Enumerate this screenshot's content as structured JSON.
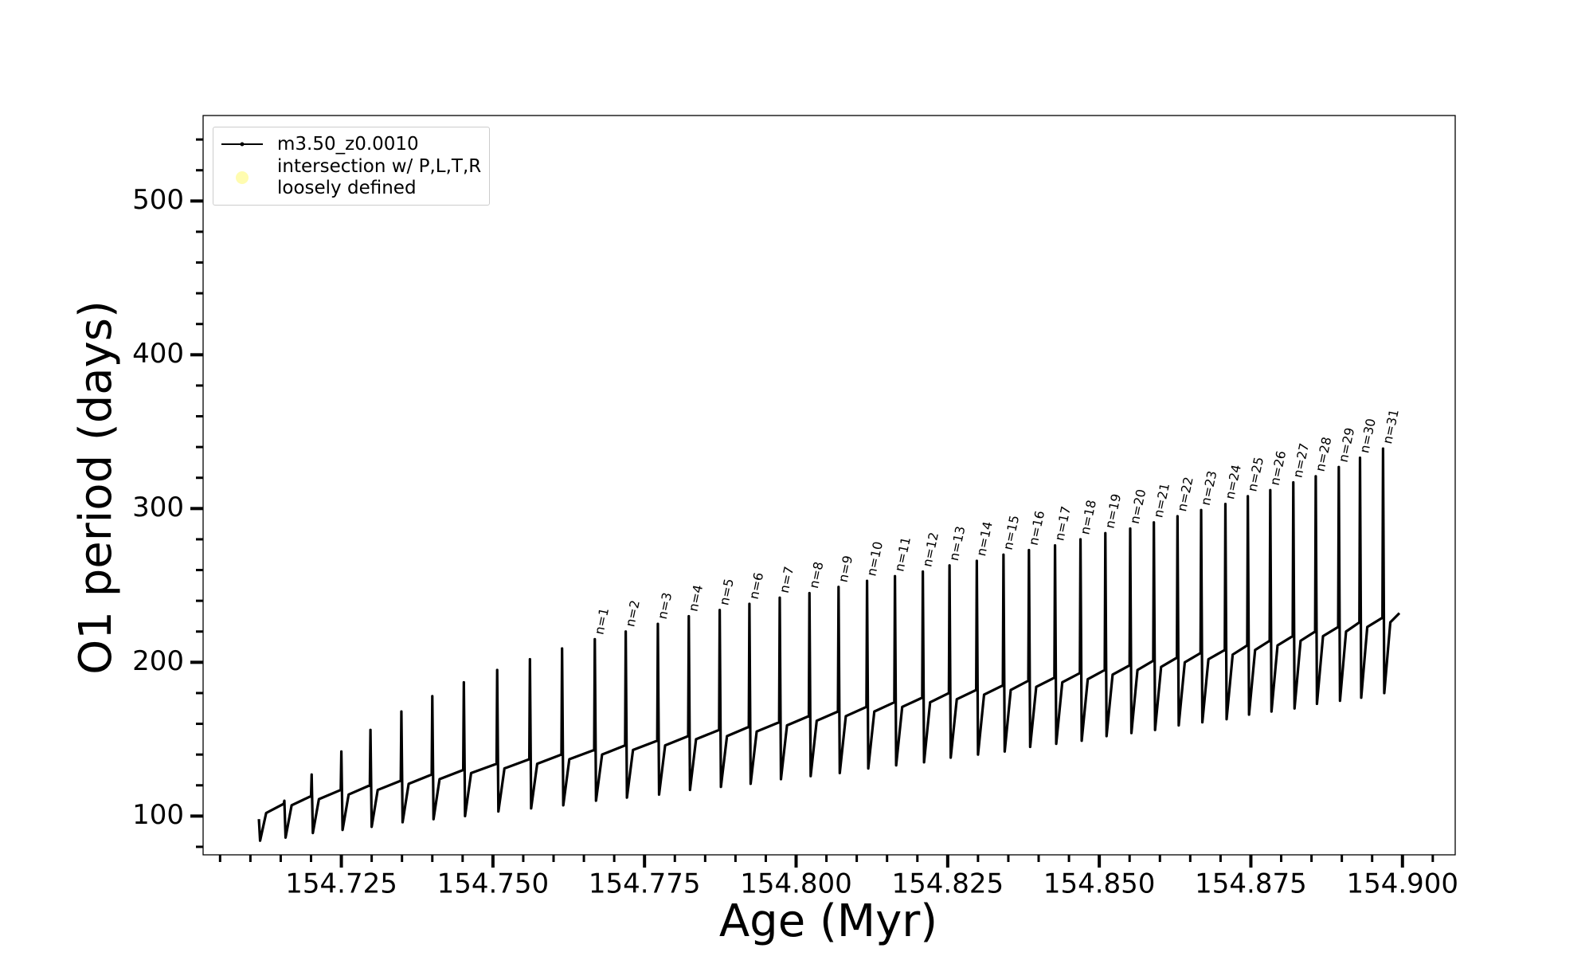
{
  "chart_data": {
    "type": "line",
    "xlabel": "Age (Myr)",
    "ylabel": "O1 period (days)",
    "xlim": [
      154.7022,
      154.9087
    ],
    "ylim": [
      74.8,
      555.6
    ],
    "xticks": [
      154.725,
      {
        "value": 154.75,
        "label": "154.750"
      },
      154.775,
      {
        "value": 154.8,
        "label": "154.800"
      },
      154.825,
      {
        "value": 154.85,
        "label": "154.850"
      },
      154.875,
      {
        "value": 154.9,
        "label": "154.900"
      }
    ],
    "xminorticks": [
      154.705,
      154.71,
      154.715,
      154.72,
      154.73,
      154.735,
      154.74,
      154.745,
      154.755,
      154.76,
      154.765,
      154.77,
      154.78,
      154.785,
      154.79,
      154.795,
      154.805,
      154.81,
      154.815,
      154.82,
      154.83,
      154.835,
      154.84,
      154.845,
      154.855,
      154.86,
      154.865,
      154.87,
      154.88,
      154.885,
      154.89,
      154.895,
      154.905
    ],
    "yticks": [
      100,
      200,
      300,
      400,
      500
    ],
    "yminorticks": [
      80,
      120,
      140,
      160,
      180,
      220,
      240,
      260,
      280,
      320,
      340,
      360,
      380,
      420,
      440,
      460,
      480,
      520,
      540
    ],
    "grid": false,
    "legend": "upper left",
    "series": [
      {
        "name": "m3.50_z0.0010",
        "kind": "line",
        "color": "#000000",
        "x": [
          154.7114,
          154.7116,
          154.7126,
          154.7155,
          154.7156,
          154.7158,
          154.7168,
          154.72,
          154.7201,
          154.7203,
          154.7213,
          154.7249,
          154.725,
          154.7252,
          154.7262,
          154.7297,
          154.7298,
          154.73,
          154.731,
          154.7348,
          154.7349,
          154.7351,
          154.7361,
          154.7399,
          154.74,
          154.7402,
          154.7412,
          154.7451,
          154.7452,
          154.7454,
          154.7464,
          154.7506,
          154.7507,
          154.7509,
          154.7519,
          154.756,
          154.7561,
          154.7563,
          154.7573,
          154.7613,
          154.7614,
          154.7616,
          154.7626,
          154.7667,
          154.7668,
          154.767,
          154.768,
          154.7718,
          154.7719,
          154.7721,
          154.7731,
          154.7771,
          154.7772,
          154.7774,
          154.7784,
          154.7822,
          154.7823,
          154.7825,
          154.7835,
          154.7873,
          154.7874,
          154.7876,
          154.7886,
          154.7922,
          154.7923,
          154.7925,
          154.7935,
          154.7972,
          154.7973,
          154.7975,
          154.7985,
          154.8021,
          154.8022,
          154.8024,
          154.8034,
          154.8069,
          154.807,
          154.8072,
          154.8082,
          154.8116,
          154.8117,
          154.8119,
          154.8129,
          154.8162,
          154.8163,
          154.8165,
          154.8175,
          154.8208,
          154.8209,
          154.8211,
          154.8221,
          154.8252,
          154.8253,
          154.8255,
          154.8265,
          154.8297,
          154.8298,
          154.83,
          154.831,
          154.8341,
          154.8342,
          154.8344,
          154.8354,
          154.8383,
          154.8384,
          154.8386,
          154.8396,
          154.8426,
          154.8427,
          154.8429,
          154.8439,
          154.8468,
          154.8469,
          154.8471,
          154.8481,
          154.8509,
          154.851,
          154.8512,
          154.8522,
          154.855,
          154.8551,
          154.8553,
          154.8563,
          154.8589,
          154.859,
          154.8592,
          154.8602,
          154.8628,
          154.8629,
          154.8631,
          154.8641,
          154.8667,
          154.8668,
          154.867,
          154.868,
          154.8707,
          154.8708,
          154.871,
          154.872,
          154.8744,
          154.8745,
          154.8747,
          154.8757,
          154.8781,
          154.8782,
          154.8784,
          154.8794,
          154.8819,
          154.882,
          154.8822,
          154.8832,
          154.8856,
          154.8857,
          154.8859,
          154.8869,
          154.8894,
          154.8895,
          154.8897,
          154.8907,
          154.8929,
          154.893,
          154.8932,
          154.8942,
          154.8967,
          154.8968,
          154.897,
          154.898,
          154.8995
        ],
        "values": [
          98,
          84,
          102,
          108,
          110,
          86,
          107,
          113,
          127,
          89,
          111,
          117,
          142,
          91,
          114,
          120,
          156,
          93,
          117,
          123,
          168,
          96,
          121,
          127,
          178,
          98,
          124,
          130,
          187,
          100,
          128,
          134,
          195,
          103,
          131,
          137,
          202,
          105,
          134,
          140,
          209,
          107,
          137,
          143,
          215,
          110,
          140,
          146,
          220,
          112,
          143,
          149,
          225,
          114,
          146,
          152,
          230,
          117,
          150,
          156,
          234,
          119,
          152,
          158,
          238,
          121,
          155,
          161,
          242,
          124,
          159,
          165,
          245,
          126,
          162,
          168,
          249,
          128,
          165,
          171,
          253,
          131,
          168,
          174,
          256,
          133,
          171,
          177,
          259,
          135,
          174,
          180,
          263,
          138,
          176,
          182,
          266,
          140,
          179,
          185,
          270,
          142,
          182,
          188,
          273,
          145,
          184,
          190,
          276,
          147,
          187,
          193,
          280,
          149,
          189,
          195,
          284,
          152,
          192,
          198,
          287,
          154,
          195,
          201,
          291,
          156,
          197,
          203,
          295,
          159,
          200,
          206,
          299,
          161,
          202,
          208,
          303,
          163,
          205,
          211,
          308,
          166,
          208,
          214,
          312,
          168,
          211,
          217,
          317,
          170,
          214,
          220,
          321,
          173,
          217,
          223,
          327,
          175,
          220,
          226,
          333,
          177,
          223,
          229,
          339,
          180,
          226,
          232
        ]
      },
      {
        "name": "intersection w/ P,L,T,R\nloosely defined",
        "kind": "scatter",
        "color": "#fffcb0",
        "x": [],
        "values": []
      }
    ],
    "annotations": [
      {
        "text": "n=1",
        "x": 154.7668,
        "y": 215
      },
      {
        "text": "n=2",
        "x": 154.7719,
        "y": 220
      },
      {
        "text": "n=3",
        "x": 154.7772,
        "y": 225
      },
      {
        "text": "n=4",
        "x": 154.7823,
        "y": 230
      },
      {
        "text": "n=5",
        "x": 154.7874,
        "y": 234
      },
      {
        "text": "n=6",
        "x": 154.7923,
        "y": 238
      },
      {
        "text": "n=7",
        "x": 154.7973,
        "y": 242
      },
      {
        "text": "n=8",
        "x": 154.8022,
        "y": 245
      },
      {
        "text": "n=9",
        "x": 154.807,
        "y": 249
      },
      {
        "text": "n=10",
        "x": 154.8117,
        "y": 253
      },
      {
        "text": "n=11",
        "x": 154.8163,
        "y": 256
      },
      {
        "text": "n=12",
        "x": 154.8209,
        "y": 259
      },
      {
        "text": "n=13",
        "x": 154.8253,
        "y": 263
      },
      {
        "text": "n=14",
        "x": 154.8298,
        "y": 266
      },
      {
        "text": "n=15",
        "x": 154.8342,
        "y": 270
      },
      {
        "text": "n=16",
        "x": 154.8384,
        "y": 273
      },
      {
        "text": "n=17",
        "x": 154.8427,
        "y": 276
      },
      {
        "text": "n=18",
        "x": 154.8469,
        "y": 280
      },
      {
        "text": "n=19",
        "x": 154.851,
        "y": 284
      },
      {
        "text": "n=20",
        "x": 154.8551,
        "y": 287
      },
      {
        "text": "n=21",
        "x": 154.859,
        "y": 291
      },
      {
        "text": "n=22",
        "x": 154.8629,
        "y": 295
      },
      {
        "text": "n=23",
        "x": 154.8668,
        "y": 299
      },
      {
        "text": "n=24",
        "x": 154.8708,
        "y": 303
      },
      {
        "text": "n=25",
        "x": 154.8745,
        "y": 308
      },
      {
        "text": "n=26",
        "x": 154.8782,
        "y": 312
      },
      {
        "text": "n=27",
        "x": 154.882,
        "y": 317
      },
      {
        "text": "n=28",
        "x": 154.8857,
        "y": 321
      },
      {
        "text": "n=29",
        "x": 154.8895,
        "y": 327
      },
      {
        "text": "n=30",
        "x": 154.893,
        "y": 333
      },
      {
        "text": "n=31",
        "x": 154.8968,
        "y": 339
      }
    ]
  }
}
